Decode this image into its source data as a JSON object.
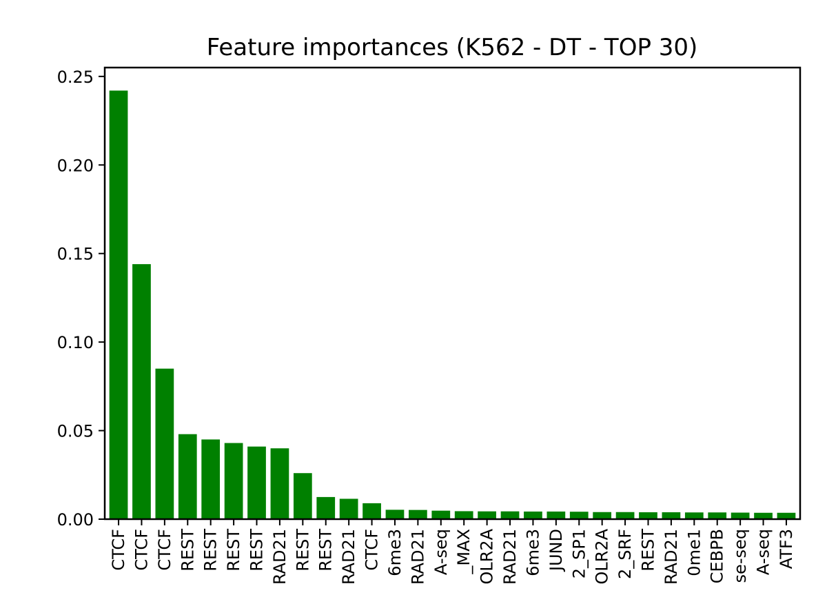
{
  "chart_data": {
    "type": "bar",
    "title": "Feature importances (K562 - DT - TOP 30)",
    "xlabel": "",
    "ylabel": "",
    "ylim": [
      0,
      0.255
    ],
    "yticks": [
      "0.00",
      "0.05",
      "0.10",
      "0.15",
      "0.20",
      "0.25"
    ],
    "ytick_values": [
      0,
      0.05,
      0.1,
      0.15,
      0.2,
      0.25
    ],
    "bar_color": "#008000",
    "grid": false,
    "categories": [
      "CTCF",
      "CTCF",
      "CTCF",
      "REST",
      "REST",
      "REST",
      "REST",
      "RAD21",
      "REST",
      "REST",
      "RAD21",
      "CTCF",
      "6me3",
      "RAD21",
      "A-seq",
      "_MAX",
      "OLR2A",
      "RAD21",
      "6me3",
      "JUND",
      "2_SP1",
      "OLR2A",
      "2_SRF",
      "REST",
      "RAD21",
      "0me1",
      "CEBPB",
      "se-seq",
      "A-seq",
      "ATF3"
    ],
    "values": [
      0.242,
      0.144,
      0.085,
      0.048,
      0.045,
      0.043,
      0.041,
      0.04,
      0.026,
      0.0125,
      0.0115,
      0.009,
      0.0053,
      0.0052,
      0.0048,
      0.0045,
      0.0044,
      0.0044,
      0.0043,
      0.0043,
      0.0042,
      0.004,
      0.004,
      0.0039,
      0.0039,
      0.0038,
      0.0038,
      0.0037,
      0.0036,
      0.0036
    ]
  }
}
